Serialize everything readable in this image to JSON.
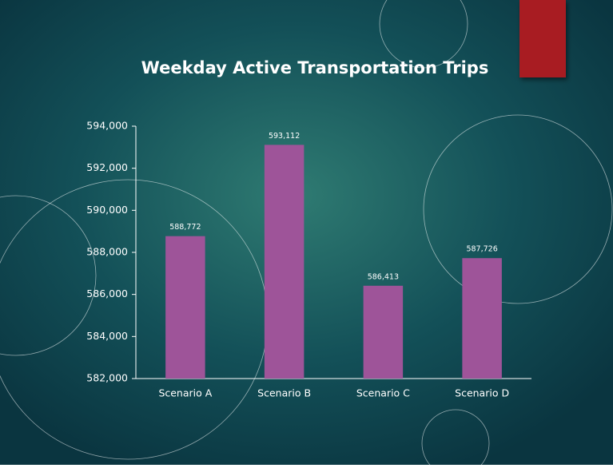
{
  "chart_data": {
    "type": "bar",
    "title": "Weekday Active Transportation Trips",
    "categories": [
      "Scenario A",
      "Scenario B",
      "Scenario C",
      "Scenario D"
    ],
    "values": [
      588772,
      593112,
      586413,
      587726
    ],
    "value_labels": [
      "588,772",
      "593,112",
      "586,413",
      "587,726"
    ],
    "color": "#9e5499",
    "ylim": [
      582000,
      594000
    ],
    "yticks": [
      {
        "value": 582000,
        "label": "582,000"
      },
      {
        "value": 584000,
        "label": "584,000"
      },
      {
        "value": 586000,
        "label": "586,000"
      },
      {
        "value": 588000,
        "label": "588,000"
      },
      {
        "value": 590000,
        "label": "590,000"
      },
      {
        "value": 592000,
        "label": "592,000"
      },
      {
        "value": 594000,
        "label": "594,000"
      }
    ],
    "grid": false
  }
}
